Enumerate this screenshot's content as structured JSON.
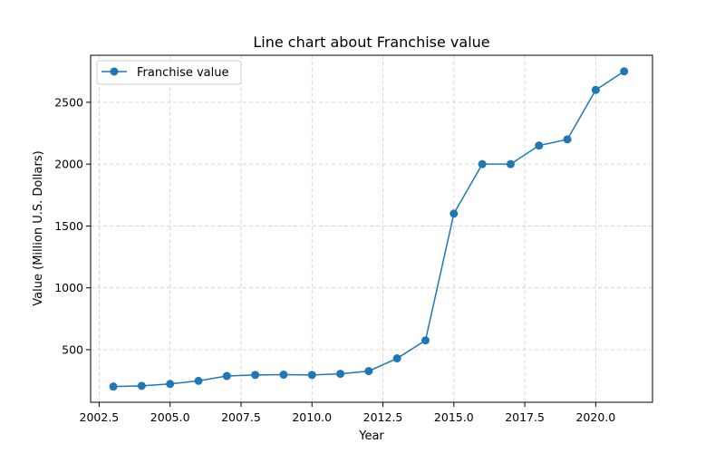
{
  "chart_data": {
    "type": "line",
    "title": "Line chart about Franchise value",
    "xlabel": "Year",
    "ylabel": "Value (Million U.S. Dollars)",
    "x": [
      2003,
      2004,
      2005,
      2006,
      2007,
      2008,
      2009,
      2010,
      2011,
      2012,
      2013,
      2014,
      2015,
      2016,
      2017,
      2018,
      2019,
      2020,
      2021
    ],
    "series": [
      {
        "name": "Franchise value",
        "color": "#1f77b4",
        "values": [
          202,
          208,
          223,
          248,
          287,
          296,
          298,
          296,
          305,
          327,
          430,
          575,
          1600,
          2000,
          2000,
          2150,
          2200,
          2600,
          2750
        ]
      }
    ],
    "xlim": [
      2002.2,
      2022.0
    ],
    "ylim": [
      75,
      2880
    ],
    "xticks": [
      2002.5,
      2005.0,
      2007.5,
      2010.0,
      2012.5,
      2015.0,
      2017.5,
      2020.0
    ],
    "xtick_labels": [
      "2002.5",
      "2005.0",
      "2007.5",
      "2010.0",
      "2012.5",
      "2015.0",
      "2017.5",
      "2020.0"
    ],
    "yticks": [
      500,
      1000,
      1500,
      2000,
      2500
    ],
    "ytick_labels": [
      "500",
      "1000",
      "1500",
      "2000",
      "2500"
    ],
    "grid": true,
    "legend": "top-left"
  }
}
